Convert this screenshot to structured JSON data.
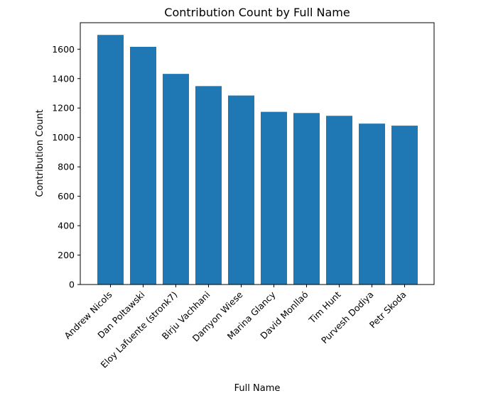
{
  "chart_data": {
    "type": "bar",
    "title": "Contribution Count by Full Name",
    "xlabel": "Full Name",
    "ylabel": "Contribution Count",
    "categories": [
      "Andrew Nicols",
      "Dan Poltawski",
      "Eloy Lafuente (stronk7)",
      "Birju Vachhani",
      "Damyon Wiese",
      "Marina Glancy",
      "David Monllaó",
      "Tim Hunt",
      "Purvesh Dodiya",
      "Petr Skoda"
    ],
    "values": [
      1697,
      1616,
      1432,
      1349,
      1285,
      1174,
      1166,
      1147,
      1094,
      1080
    ],
    "ylim": [
      0,
      1780
    ],
    "yticks": [
      0,
      200,
      400,
      600,
      800,
      1000,
      1200,
      1400,
      1600
    ],
    "bar_color": "#1f77b4",
    "grid": false,
    "legend": "none"
  }
}
